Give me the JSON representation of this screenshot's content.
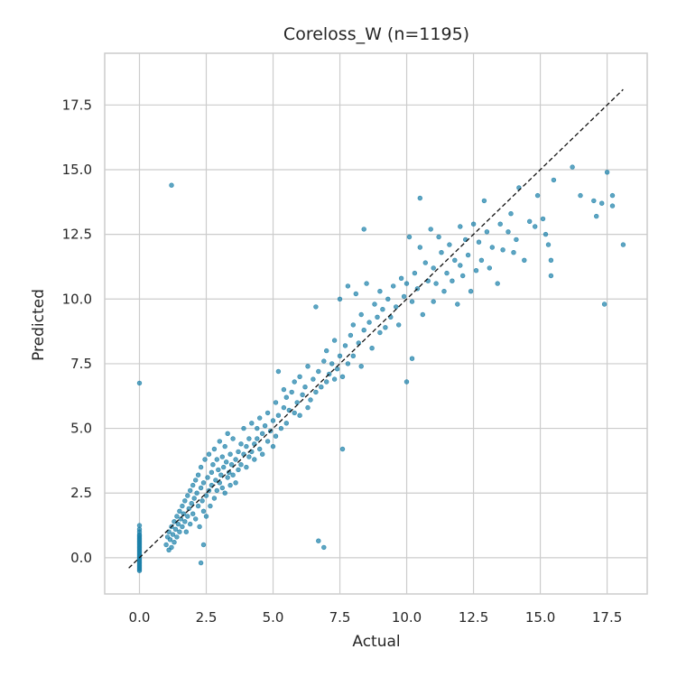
{
  "chart_data": {
    "type": "scatter",
    "title": "Coreloss_W  (n=1195)",
    "xlabel": "Actual",
    "ylabel": "Predicted",
    "xlim": [
      -1.3,
      19.0
    ],
    "ylim": [
      -1.4,
      19.5
    ],
    "xticks": [
      "0.0",
      "2.5",
      "5.0",
      "7.5",
      "10.0",
      "12.5",
      "15.0",
      "17.5"
    ],
    "yticks": [
      "0.0",
      "2.5",
      "5.0",
      "7.5",
      "10.0",
      "12.5",
      "15.0",
      "17.5"
    ],
    "grid": true,
    "reference_line": {
      "style": "dashed",
      "from": [
        -0.4,
        -0.4
      ],
      "to": [
        18.1,
        18.1
      ]
    },
    "marker_color": "#1a7fa8",
    "points": [
      [
        0,
        -0.5
      ],
      [
        0,
        -0.45
      ],
      [
        0,
        -0.4
      ],
      [
        0,
        -0.35
      ],
      [
        0,
        -0.3
      ],
      [
        0,
        -0.25
      ],
      [
        0,
        -0.2
      ],
      [
        0,
        -0.15
      ],
      [
        0,
        -0.1
      ],
      [
        0,
        -0.05
      ],
      [
        0,
        0
      ],
      [
        0,
        0.05
      ],
      [
        0,
        0.1
      ],
      [
        0,
        0.15
      ],
      [
        0,
        0.2
      ],
      [
        0,
        0.25
      ],
      [
        0,
        0.3
      ],
      [
        0,
        0.35
      ],
      [
        0,
        0.4
      ],
      [
        0,
        0.45
      ],
      [
        0,
        0.5
      ],
      [
        0,
        0.55
      ],
      [
        0,
        0.6
      ],
      [
        0,
        0.65
      ],
      [
        0,
        0.7
      ],
      [
        0,
        0.75
      ],
      [
        0,
        0.8
      ],
      [
        0,
        0.85
      ],
      [
        0,
        0.9
      ],
      [
        0,
        1.0
      ],
      [
        0,
        1.1
      ],
      [
        0,
        1.25
      ],
      [
        0,
        6.75
      ],
      [
        1.2,
        14.4
      ],
      [
        2.4,
        0.5
      ],
      [
        2.3,
        -0.2
      ],
      [
        6.7,
        0.65
      ],
      [
        6.9,
        0.4
      ],
      [
        7.6,
        4.2
      ],
      [
        1.0,
        0.5
      ],
      [
        1.05,
        0.8
      ],
      [
        1.1,
        0.3
      ],
      [
        1.1,
        1.0
      ],
      [
        1.15,
        0.7
      ],
      [
        1.2,
        0.4
      ],
      [
        1.2,
        1.2
      ],
      [
        1.25,
        0.9
      ],
      [
        1.3,
        0.6
      ],
      [
        1.3,
        1.4
      ],
      [
        1.35,
        1.1
      ],
      [
        1.4,
        0.8
      ],
      [
        1.4,
        1.6
      ],
      [
        1.45,
        1.3
      ],
      [
        1.5,
        1.0
      ],
      [
        1.5,
        1.8
      ],
      [
        1.55,
        1.5
      ],
      [
        1.6,
        1.2
      ],
      [
        1.6,
        2.0
      ],
      [
        1.65,
        1.7
      ],
      [
        1.7,
        1.4
      ],
      [
        1.7,
        2.2
      ],
      [
        1.75,
        1.0
      ],
      [
        1.8,
        1.6
      ],
      [
        1.8,
        2.4
      ],
      [
        1.85,
        1.9
      ],
      [
        1.9,
        1.3
      ],
      [
        1.9,
        2.6
      ],
      [
        1.95,
        2.1
      ],
      [
        2.0,
        1.7
      ],
      [
        2.0,
        2.8
      ],
      [
        2.05,
        2.3
      ],
      [
        2.1,
        1.5
      ],
      [
        2.1,
        3.0
      ],
      [
        2.15,
        2.5
      ],
      [
        2.2,
        2.0
      ],
      [
        2.2,
        3.2
      ],
      [
        2.25,
        1.2
      ],
      [
        2.3,
        2.7
      ],
      [
        2.3,
        3.5
      ],
      [
        2.35,
        2.2
      ],
      [
        2.4,
        1.8
      ],
      [
        2.4,
        2.9
      ],
      [
        2.45,
        3.8
      ],
      [
        2.5,
        2.4
      ],
      [
        2.5,
        1.6
      ],
      [
        2.55,
        3.1
      ],
      [
        2.6,
        2.6
      ],
      [
        2.6,
        4.0
      ],
      [
        2.65,
        2.0
      ],
      [
        2.7,
        3.3
      ],
      [
        2.7,
        2.8
      ],
      [
        2.75,
        3.6
      ],
      [
        2.8,
        2.3
      ],
      [
        2.8,
        4.2
      ],
      [
        2.85,
        3.0
      ],
      [
        2.9,
        2.6
      ],
      [
        2.9,
        3.8
      ],
      [
        2.95,
        3.4
      ],
      [
        3.0,
        2.9
      ],
      [
        3.0,
        4.5
      ],
      [
        3.05,
        3.2
      ],
      [
        3.1,
        2.7
      ],
      [
        3.1,
        3.9
      ],
      [
        3.15,
        3.5
      ],
      [
        3.2,
        2.5
      ],
      [
        3.2,
        4.3
      ],
      [
        3.25,
        3.7
      ],
      [
        3.3,
        3.1
      ],
      [
        3.3,
        4.8
      ],
      [
        3.35,
        3.3
      ],
      [
        3.4,
        2.8
      ],
      [
        3.4,
        4.0
      ],
      [
        3.45,
        3.6
      ],
      [
        3.5,
        3.2
      ],
      [
        3.5,
        4.6
      ],
      [
        3.6,
        3.8
      ],
      [
        3.6,
        2.9
      ],
      [
        3.7,
        4.1
      ],
      [
        3.7,
        3.4
      ],
      [
        3.8,
        4.4
      ],
      [
        3.8,
        3.6
      ],
      [
        3.9,
        4.0
      ],
      [
        3.9,
        5.0
      ],
      [
        4.0,
        3.5
      ],
      [
        4.0,
        4.3
      ],
      [
        4.1,
        4.6
      ],
      [
        4.1,
        3.9
      ],
      [
        4.2,
        5.2
      ],
      [
        4.2,
        4.1
      ],
      [
        4.3,
        4.4
      ],
      [
        4.3,
        3.8
      ],
      [
        4.4,
        5.0
      ],
      [
        4.4,
        4.6
      ],
      [
        4.5,
        4.2
      ],
      [
        4.5,
        5.4
      ],
      [
        4.6,
        4.8
      ],
      [
        4.6,
        4.0
      ],
      [
        4.7,
        5.1
      ],
      [
        4.8,
        4.5
      ],
      [
        4.8,
        5.6
      ],
      [
        4.9,
        4.9
      ],
      [
        5.0,
        4.3
      ],
      [
        5.0,
        5.3
      ],
      [
        5.1,
        6.0
      ],
      [
        5.1,
        4.7
      ],
      [
        5.2,
        5.5
      ],
      [
        5.2,
        7.2
      ],
      [
        5.3,
        5.0
      ],
      [
        5.4,
        5.8
      ],
      [
        5.4,
        6.5
      ],
      [
        5.5,
        5.2
      ],
      [
        5.5,
        6.2
      ],
      [
        5.6,
        5.7
      ],
      [
        5.7,
        6.4
      ],
      [
        5.8,
        5.6
      ],
      [
        5.8,
        6.8
      ],
      [
        5.9,
        6.0
      ],
      [
        6.0,
        5.5
      ],
      [
        6.0,
        7.0
      ],
      [
        6.1,
        6.3
      ],
      [
        6.2,
        6.6
      ],
      [
        6.3,
        5.8
      ],
      [
        6.3,
        7.4
      ],
      [
        6.4,
        6.1
      ],
      [
        6.5,
        6.9
      ],
      [
        6.6,
        6.4
      ],
      [
        6.6,
        9.7
      ],
      [
        6.7,
        7.2
      ],
      [
        6.8,
        6.6
      ],
      [
        6.9,
        7.6
      ],
      [
        7.0,
        6.8
      ],
      [
        7.0,
        8.0
      ],
      [
        7.1,
        7.1
      ],
      [
        7.2,
        7.5
      ],
      [
        7.3,
        6.9
      ],
      [
        7.3,
        8.4
      ],
      [
        7.4,
        7.3
      ],
      [
        7.5,
        7.8
      ],
      [
        7.5,
        10.0
      ],
      [
        7.6,
        7.0
      ],
      [
        7.7,
        8.2
      ],
      [
        7.8,
        7.5
      ],
      [
        7.8,
        10.5
      ],
      [
        7.9,
        8.6
      ],
      [
        8.0,
        7.8
      ],
      [
        8.0,
        9.0
      ],
      [
        8.1,
        10.2
      ],
      [
        8.2,
        8.3
      ],
      [
        8.3,
        7.4
      ],
      [
        8.3,
        9.4
      ],
      [
        8.4,
        12.7
      ],
      [
        8.4,
        8.8
      ],
      [
        8.5,
        10.6
      ],
      [
        8.6,
        9.1
      ],
      [
        8.7,
        8.1
      ],
      [
        8.8,
        9.8
      ],
      [
        8.9,
        9.3
      ],
      [
        9.0,
        8.7
      ],
      [
        9.0,
        10.3
      ],
      [
        9.1,
        9.6
      ],
      [
        9.2,
        8.9
      ],
      [
        9.3,
        10.0
      ],
      [
        9.4,
        9.3
      ],
      [
        9.5,
        10.5
      ],
      [
        9.6,
        9.7
      ],
      [
        9.7,
        9.0
      ],
      [
        9.8,
        10.8
      ],
      [
        9.9,
        10.1
      ],
      [
        10.0,
        6.8
      ],
      [
        10.0,
        10.6
      ],
      [
        10.1,
        12.4
      ],
      [
        10.2,
        7.7
      ],
      [
        10.2,
        9.9
      ],
      [
        10.3,
        11.0
      ],
      [
        10.4,
        10.4
      ],
      [
        10.5,
        13.9
      ],
      [
        10.5,
        12.0
      ],
      [
        10.6,
        9.4
      ],
      [
        10.7,
        11.4
      ],
      [
        10.8,
        10.7
      ],
      [
        10.9,
        12.7
      ],
      [
        11.0,
        9.9
      ],
      [
        11.0,
        11.2
      ],
      [
        11.1,
        10.6
      ],
      [
        11.2,
        12.4
      ],
      [
        11.3,
        11.8
      ],
      [
        11.4,
        10.3
      ],
      [
        11.5,
        11.0
      ],
      [
        11.6,
        12.1
      ],
      [
        11.7,
        10.7
      ],
      [
        11.8,
        11.5
      ],
      [
        11.9,
        9.8
      ],
      [
        12.0,
        12.8
      ],
      [
        12.0,
        11.3
      ],
      [
        12.1,
        10.9
      ],
      [
        12.2,
        12.3
      ],
      [
        12.3,
        11.7
      ],
      [
        12.4,
        10.3
      ],
      [
        12.5,
        12.9
      ],
      [
        12.6,
        11.1
      ],
      [
        12.7,
        12.2
      ],
      [
        12.8,
        11.5
      ],
      [
        12.9,
        13.8
      ],
      [
        13.0,
        12.6
      ],
      [
        13.1,
        11.2
      ],
      [
        13.2,
        12.0
      ],
      [
        13.4,
        10.6
      ],
      [
        13.5,
        12.9
      ],
      [
        13.6,
        11.9
      ],
      [
        13.8,
        12.6
      ],
      [
        13.9,
        13.3
      ],
      [
        14.0,
        11.8
      ],
      [
        14.1,
        12.3
      ],
      [
        14.2,
        14.3
      ],
      [
        14.4,
        11.5
      ],
      [
        14.6,
        13.0
      ],
      [
        14.8,
        12.8
      ],
      [
        14.9,
        14.0
      ],
      [
        15.1,
        13.1
      ],
      [
        15.2,
        12.5
      ],
      [
        15.3,
        12.1
      ],
      [
        15.4,
        11.5
      ],
      [
        15.5,
        14.6
      ],
      [
        15.4,
        10.9
      ],
      [
        16.2,
        15.1
      ],
      [
        16.5,
        14.0
      ],
      [
        17.0,
        13.8
      ],
      [
        17.1,
        13.2
      ],
      [
        17.3,
        13.7
      ],
      [
        17.4,
        9.8
      ],
      [
        17.5,
        14.9
      ],
      [
        17.7,
        14.0
      ],
      [
        17.7,
        13.6
      ],
      [
        18.1,
        12.1
      ]
    ]
  }
}
